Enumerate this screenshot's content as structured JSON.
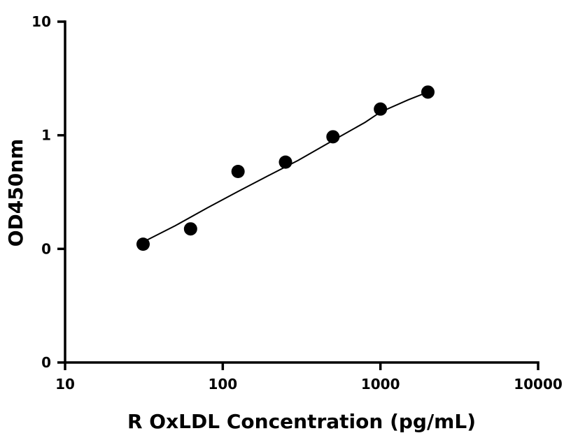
{
  "chart_data": {
    "type": "scatter",
    "title": "",
    "xlabel": "R OxLDL Concentration (pg/mL)",
    "ylabel": "OD450nm",
    "x_scale": "log",
    "y_scale": "log",
    "xlim": [
      10,
      10000
    ],
    "ylim": [
      0.01,
      10
    ],
    "x_ticks": [
      10,
      100,
      1000,
      10000
    ],
    "x_tick_labels": [
      "10",
      "100",
      "1000",
      "10000"
    ],
    "y_ticks": [
      0.01,
      0.1,
      1,
      10
    ],
    "y_tick_labels": [
      "0",
      "0",
      "1",
      "10"
    ],
    "grid": false,
    "legend": "none",
    "series": [
      {
        "x": [
          31.25,
          62.5,
          125,
          250,
          500,
          1000,
          2000
        ],
        "y": [
          0.11,
          0.15,
          0.48,
          0.58,
          0.97,
          1.7,
          2.4
        ]
      }
    ],
    "fit_curve": {
      "x": [
        31.25,
        50,
        80,
        125,
        200,
        300,
        500,
        800,
        1000,
        1500,
        2000
      ],
      "y": [
        0.115,
        0.16,
        0.23,
        0.32,
        0.45,
        0.6,
        0.9,
        1.3,
        1.6,
        2.05,
        2.4
      ]
    },
    "colors": {
      "axis": "#000000",
      "points": "#000000",
      "curve": "#000000"
    }
  }
}
